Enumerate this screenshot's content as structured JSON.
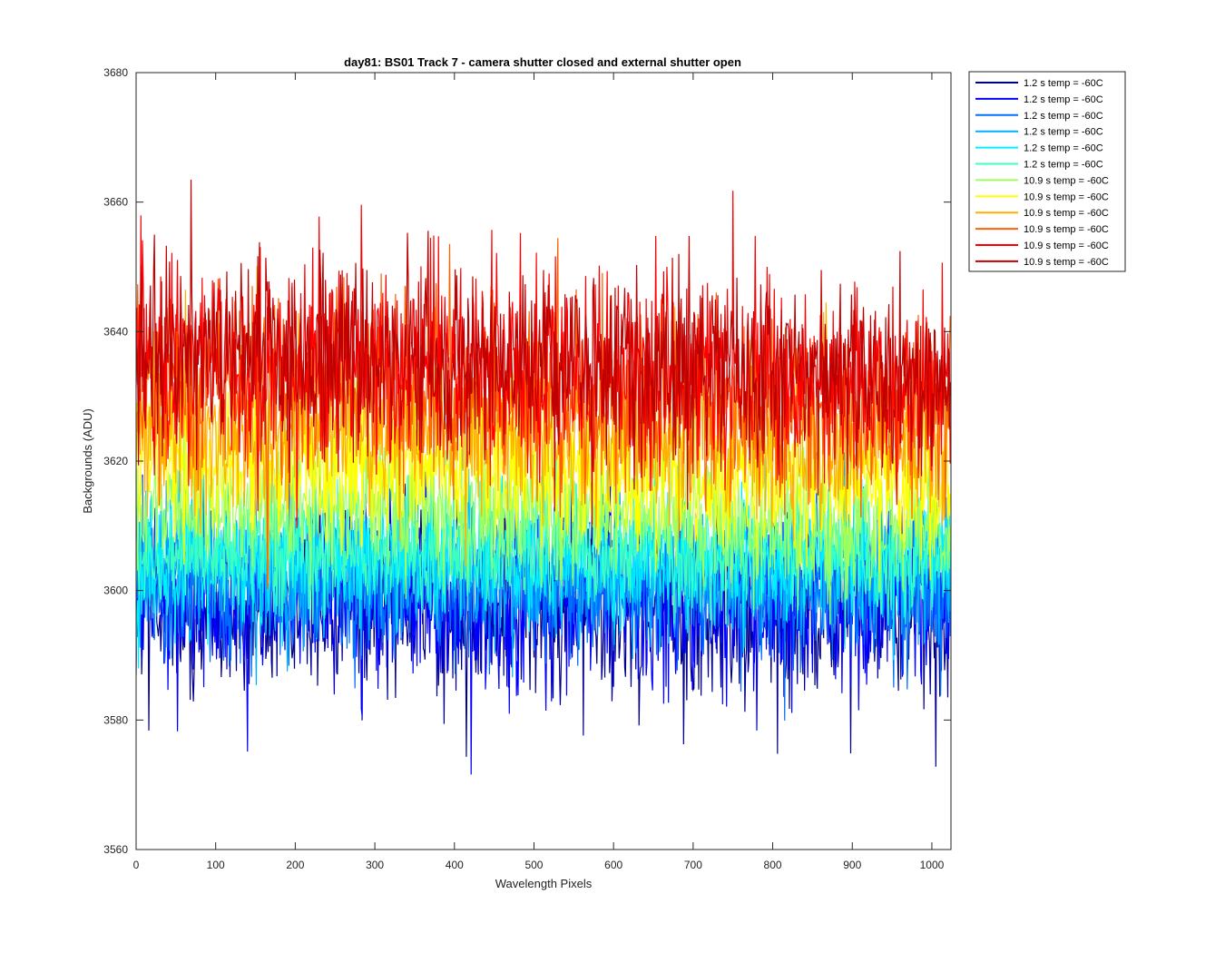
{
  "chart_data": {
    "type": "line",
    "title": "day81: BS01  Track 7 - camera shutter closed and external shutter open",
    "xlabel": "Wavelength Pixels",
    "ylabel": "Backgrounds (ADU)",
    "xlim": [
      0,
      1024
    ],
    "ylim": [
      3560,
      3680
    ],
    "xticks": [
      0,
      100,
      200,
      300,
      400,
      500,
      600,
      700,
      800,
      900,
      1000
    ],
    "yticks": [
      3560,
      3580,
      3600,
      3620,
      3640,
      3660,
      3680
    ],
    "grid": false,
    "legend_position": "outside-top-right",
    "num_points": 1024,
    "series": [
      {
        "name": "1.2 s temp = -60C",
        "color": "#00008f",
        "mean": 3597,
        "spread": 6.5,
        "seed": 11
      },
      {
        "name": "1.2 s temp = -60C",
        "color": "#0000ff",
        "mean": 3598,
        "spread": 6.5,
        "seed": 23
      },
      {
        "name": "1.2 s temp = -60C",
        "color": "#0070ff",
        "mean": 3601,
        "spread": 5.5,
        "seed": 37
      },
      {
        "name": "1.2 s temp = -60C",
        "color": "#00b0ff",
        "mean": 3603,
        "spread": 5.0,
        "seed": 41
      },
      {
        "name": "1.2 s temp = -60C",
        "color": "#00efff",
        "mean": 3605,
        "spread": 4.8,
        "seed": 53
      },
      {
        "name": "1.2 s temp = -60C",
        "color": "#3fffbf",
        "mean": 3606,
        "spread": 4.2,
        "seed": 67
      },
      {
        "name": "10.9 s temp = -60C",
        "color": "#9fff60",
        "mean": 3614,
        "spread": 5.0,
        "seed": 71
      },
      {
        "name": "10.9 s temp = -60C",
        "color": "#ffff00",
        "mean": 3620,
        "spread": 5.5,
        "seed": 83
      },
      {
        "name": "10.9 s temp = -60C",
        "color": "#ffaf00",
        "mean": 3626,
        "spread": 6.0,
        "seed": 97
      },
      {
        "name": "10.9 s temp = -60C",
        "color": "#ff6000",
        "mean": 3632,
        "spread": 6.5,
        "seed": 101
      },
      {
        "name": "10.9 s temp = -60C",
        "color": "#ff0000",
        "mean": 3636,
        "spread": 7.0,
        "seed": 113
      },
      {
        "name": "10.9 s temp = -60C",
        "color": "#bf0000",
        "mean": 3637,
        "spread": 7.0,
        "seed": 127
      }
    ]
  }
}
